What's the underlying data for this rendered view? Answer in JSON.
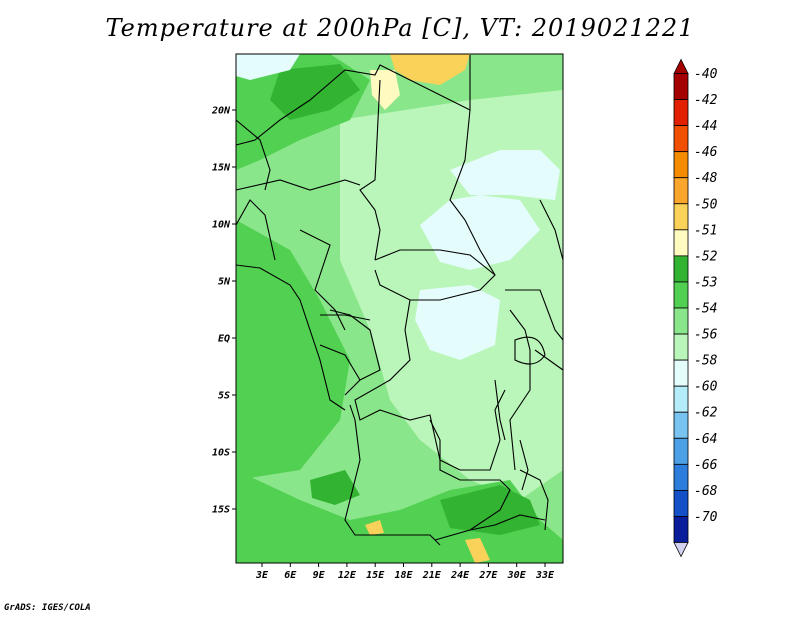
{
  "title": "Temperature at 200hPa [C], VT: 2019021221",
  "footer": "GrADS: IGES/COLA",
  "map": {
    "lon_ticks": [
      {
        "value": 3,
        "label": "3E"
      },
      {
        "value": 6,
        "label": "6E"
      },
      {
        "value": 9,
        "label": "9E"
      },
      {
        "value": 12,
        "label": "12E"
      },
      {
        "value": 15,
        "label": "15E"
      },
      {
        "value": 18,
        "label": "18E"
      },
      {
        "value": 21,
        "label": "21E"
      },
      {
        "value": 24,
        "label": "24E"
      },
      {
        "value": 27,
        "label": "27E"
      },
      {
        "value": 30,
        "label": "30E"
      },
      {
        "value": 33,
        "label": "33E"
      }
    ],
    "lat_ticks": [
      {
        "value": 20,
        "label": "20N"
      },
      {
        "value": 15,
        "label": "15N"
      },
      {
        "value": 10,
        "label": "10N"
      },
      {
        "value": 5,
        "label": "5N"
      },
      {
        "value": 0,
        "label": "EQ"
      },
      {
        "value": -5,
        "label": "5S"
      },
      {
        "value": -10,
        "label": "10S"
      },
      {
        "value": -15,
        "label": "15S"
      }
    ]
  },
  "colorbar": {
    "levels": [
      {
        "label": "-40",
        "color": "#a50000"
      },
      {
        "label": "-42",
        "color": "#e02000"
      },
      {
        "label": "-44",
        "color": "#f05000"
      },
      {
        "label": "-46",
        "color": "#f58c00"
      },
      {
        "label": "-48",
        "color": "#faa52c"
      },
      {
        "label": "-50",
        "color": "#fad25a"
      },
      {
        "label": "-51",
        "color": "#fffac0"
      },
      {
        "label": "-52",
        "color": "#32b432"
      },
      {
        "label": "-53",
        "color": "#52d052"
      },
      {
        "label": "-54",
        "color": "#8ae68a"
      },
      {
        "label": "-56",
        "color": "#baf6ba"
      },
      {
        "label": "-58",
        "color": "#e4fcfc"
      },
      {
        "label": "-60",
        "color": "#b4ecfa"
      },
      {
        "label": "-62",
        "color": "#78c3f0"
      },
      {
        "label": "-64",
        "color": "#4ba0e6"
      },
      {
        "label": "-66",
        "color": "#2d7ddc"
      },
      {
        "label": "-68",
        "color": "#1450c8"
      },
      {
        "label": "-70",
        "color": "#0a1e9b"
      }
    ],
    "under_color": "#0a0a5a",
    "over_color": "#d2d2f0"
  }
}
